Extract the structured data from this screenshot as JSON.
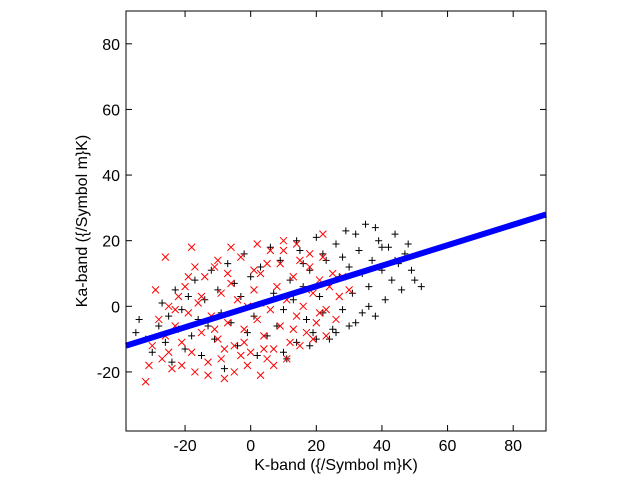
{
  "chart_data": {
    "type": "scatter",
    "title": "",
    "xlabel": "K-band ({/Symbol m}K)",
    "ylabel": "Ka-band ({/Symbol m}K)",
    "xlim": [
      -38,
      90
    ],
    "ylim": [
      -38,
      90
    ],
    "xticks": [
      -20,
      0,
      20,
      40,
      60,
      80
    ],
    "yticks": [
      -20,
      0,
      20,
      40,
      60,
      80
    ],
    "grid": false,
    "legend": "none",
    "series": [
      {
        "marker": "plus",
        "color": "#000000",
        "points": [
          [
            -35,
            -8
          ],
          [
            -34,
            -4
          ],
          [
            -32,
            -10
          ],
          [
            -30,
            -14
          ],
          [
            -28,
            -6
          ],
          [
            -27,
            1
          ],
          [
            -26,
            -11
          ],
          [
            -25,
            -3
          ],
          [
            -24,
            -17
          ],
          [
            -23,
            5
          ],
          [
            -22,
            -7
          ],
          [
            -21,
            -1
          ],
          [
            -20,
            -13
          ],
          [
            -19,
            3
          ],
          [
            -18,
            -9
          ],
          [
            -17,
            8
          ],
          [
            -16,
            -4
          ],
          [
            -15,
            -15
          ],
          [
            -14,
            2
          ],
          [
            -13,
            -6
          ],
          [
            -12,
            11
          ],
          [
            -11,
            -10
          ],
          [
            -10,
            5
          ],
          [
            -9,
            -2
          ],
          [
            -8,
            -19
          ],
          [
            -7,
            13
          ],
          [
            -6,
            -5
          ],
          [
            -5,
            7
          ],
          [
            -4,
            -12
          ],
          [
            -3,
            3
          ],
          [
            -2,
            16
          ],
          [
            -1,
            -8
          ],
          [
            0,
            9
          ],
          [
            1,
            -3
          ],
          [
            2,
            -15
          ],
          [
            3,
            12
          ],
          [
            4,
            1
          ],
          [
            5,
            -9
          ],
          [
            6,
            18
          ],
          [
            7,
            4
          ],
          [
            8,
            -6
          ],
          [
            9,
            14
          ],
          [
            10,
            -1
          ],
          [
            11,
            -16
          ],
          [
            12,
            8
          ],
          [
            13,
            2
          ],
          [
            14,
            -11
          ],
          [
            15,
            17
          ],
          [
            16,
            6
          ],
          [
            17,
            -4
          ],
          [
            18,
            11
          ],
          [
            19,
            -8
          ],
          [
            20,
            21
          ],
          [
            21,
            3
          ],
          [
            22,
            -2
          ],
          [
            23,
            14
          ],
          [
            24,
            7
          ],
          [
            25,
            -7
          ],
          [
            26,
            19
          ],
          [
            27,
            9
          ],
          [
            28,
            -1
          ],
          [
            29,
            23
          ],
          [
            30,
            12
          ],
          [
            31,
            4
          ],
          [
            32,
            -5
          ],
          [
            33,
            17
          ],
          [
            34,
            10
          ],
          [
            35,
            25
          ],
          [
            36,
            6
          ],
          [
            37,
            14
          ],
          [
            38,
            -3
          ],
          [
            39,
            20
          ],
          [
            40,
            11
          ],
          [
            41,
            2
          ],
          [
            42,
            18
          ],
          [
            43,
            8
          ],
          [
            44,
            22
          ],
          [
            45,
            13
          ],
          [
            46,
            5
          ],
          [
            47,
            16
          ],
          [
            48,
            19
          ],
          [
            49,
            11
          ],
          [
            50,
            8
          ],
          [
            52,
            6
          ],
          [
            34,
            -2
          ],
          [
            36,
            0
          ],
          [
            30,
            -6
          ],
          [
            26,
            -8
          ],
          [
            24,
            -10
          ],
          [
            28,
            15
          ],
          [
            32,
            22
          ],
          [
            38,
            24
          ],
          [
            40,
            18
          ],
          [
            44,
            14
          ],
          [
            22,
            16
          ],
          [
            20,
            -10
          ],
          [
            18,
            -12
          ],
          [
            16,
            13
          ],
          [
            14,
            20
          ],
          [
            10,
            -14
          ]
        ]
      },
      {
        "marker": "cross",
        "color": "#ff0000",
        "points": [
          [
            -32,
            -23
          ],
          [
            -30,
            -12
          ],
          [
            -28,
            -4
          ],
          [
            -27,
            -16
          ],
          [
            -26,
            -9
          ],
          [
            -25,
            0
          ],
          [
            -24,
            -19
          ],
          [
            -23,
            -6
          ],
          [
            -22,
            3
          ],
          [
            -21,
            -11
          ],
          [
            -20,
            6
          ],
          [
            -19,
            -2
          ],
          [
            -18,
            -14
          ],
          [
            -17,
            -20
          ],
          [
            -16,
            1
          ],
          [
            -15,
            -8
          ],
          [
            -14,
            9
          ],
          [
            -13,
            -17
          ],
          [
            -12,
            -3
          ],
          [
            -11,
            12
          ],
          [
            -10,
            -10
          ],
          [
            -9,
            4
          ],
          [
            -8,
            -22
          ],
          [
            -7,
            -5
          ],
          [
            -6,
            7
          ],
          [
            -5,
            -12
          ],
          [
            -4,
            2
          ],
          [
            -3,
            15
          ],
          [
            -2,
            -7
          ],
          [
            -1,
            0
          ],
          [
            0,
            -14
          ],
          [
            1,
            5
          ],
          [
            2,
            -4
          ],
          [
            3,
            10
          ],
          [
            4,
            -9
          ],
          [
            5,
            13
          ],
          [
            6,
            -1
          ],
          [
            7,
            -18
          ],
          [
            8,
            6
          ],
          [
            9,
            -6
          ],
          [
            10,
            17
          ],
          [
            11,
            2
          ],
          [
            12,
            -11
          ],
          [
            13,
            9
          ],
          [
            14,
            -3
          ],
          [
            15,
            14
          ],
          [
            16,
            0
          ],
          [
            17,
            -8
          ],
          [
            18,
            12
          ],
          [
            19,
            4
          ],
          [
            20,
            -5
          ],
          [
            21,
            8
          ],
          [
            22,
            15
          ],
          [
            23,
            -1
          ],
          [
            24,
            6
          ],
          [
            25,
            10
          ],
          [
            26,
            -4
          ],
          [
            27,
            3
          ],
          [
            28,
            9
          ],
          [
            30,
            5
          ],
          [
            -31,
            -18
          ],
          [
            -29,
            5
          ],
          [
            -25,
            -14
          ],
          [
            -21,
            -18
          ],
          [
            -17,
            12
          ],
          [
            -13,
            -21
          ],
          [
            -9,
            -16
          ],
          [
            -5,
            -20
          ],
          [
            -1,
            -18
          ],
          [
            3,
            -21
          ],
          [
            7,
            -13
          ],
          [
            11,
            -16
          ],
          [
            15,
            -12
          ],
          [
            19,
            -10
          ],
          [
            23,
            -9
          ],
          [
            -23,
            -1
          ],
          [
            -19,
            9
          ],
          [
            -15,
            3
          ],
          [
            -11,
            -7
          ],
          [
            -7,
            10
          ],
          [
            -3,
            -15
          ],
          [
            1,
            11
          ],
          [
            5,
            -16
          ],
          [
            9,
            13
          ],
          [
            13,
            -7
          ],
          [
            17,
            5
          ],
          [
            21,
            -2
          ],
          [
            -26,
            15
          ],
          [
            -18,
            18
          ],
          [
            -10,
            14
          ],
          [
            -6,
            18
          ],
          [
            2,
            19
          ],
          [
            6,
            17
          ],
          [
            10,
            20
          ],
          [
            14,
            19
          ],
          [
            18,
            16
          ],
          [
            22,
            22
          ],
          [
            -8,
            -13
          ],
          [
            -2,
            -11
          ],
          [
            4,
            -13
          ]
        ]
      },
      {
        "name": "",
        "type": "line",
        "color": "#0000ff",
        "x": [
          -38,
          90
        ],
        "y": [
          -12,
          28
        ]
      }
    ]
  }
}
